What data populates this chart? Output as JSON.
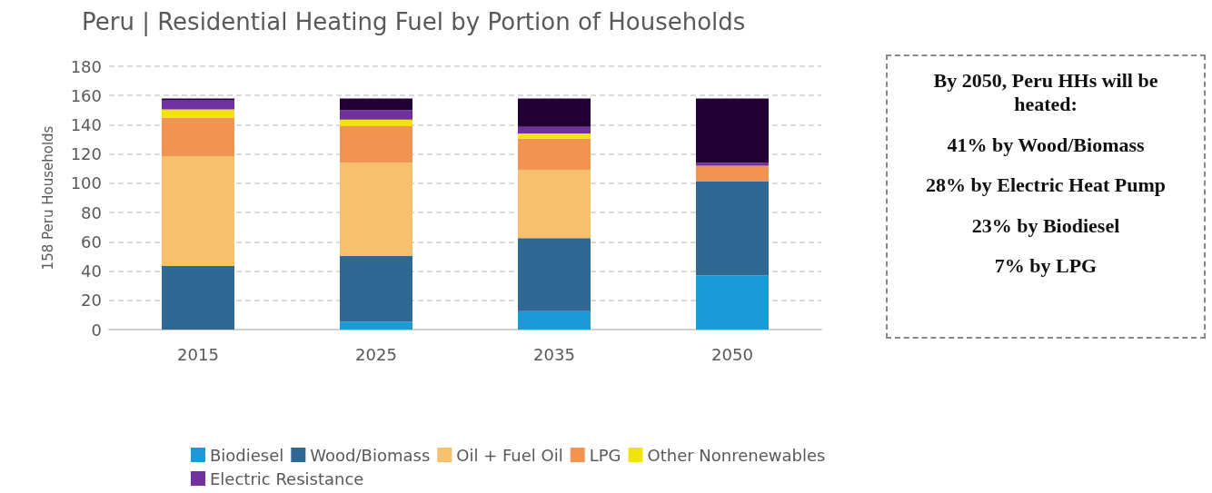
{
  "chart_data": {
    "type": "bar",
    "title": "Peru | Residential Heating Fuel by Portion of Households",
    "ylabel": "158 Peru Households",
    "categories": [
      "2015",
      "2025",
      "2035",
      "2050"
    ],
    "stacked": true,
    "ylim": [
      0,
      180
    ],
    "yticks": [
      0,
      20,
      40,
      60,
      80,
      100,
      120,
      140,
      160,
      180
    ],
    "grid": "y",
    "legend": "bottom",
    "series": [
      {
        "name": "Biodiesel",
        "color": "#1a9ad9",
        "values": [
          0,
          5.5,
          12.5,
          37
        ]
      },
      {
        "name": "Wood/Biomass",
        "color": "#306894",
        "values": [
          43.5,
          45,
          50,
          64.5
        ]
      },
      {
        "name": "Oil + Fuel Oil",
        "color": "#f7c06d",
        "values": [
          75,
          63.5,
          46.5,
          0
        ]
      },
      {
        "name": "LPG",
        "color": "#f09353",
        "values": [
          26.5,
          25,
          21.5,
          10.5
        ]
      },
      {
        "name": "Other Nonrenewables",
        "color": "#f2e20f",
        "values": [
          5.5,
          4.5,
          3.5,
          0
        ]
      },
      {
        "name": "Electric Resistance",
        "color": "#7030a0",
        "values": [
          6.5,
          6.5,
          4.5,
          2
        ]
      },
      {
        "color": "#220033",
        "values": [
          1,
          8,
          19.5,
          44
        ]
      }
    ],
    "annotations": [
      "By 2050, Peru HHs will be heated:",
      "41% by Wood/Biomass",
      "28% by Electric Heat Pump",
      "23% by Biodiesel",
      "7% by LPG"
    ]
  }
}
